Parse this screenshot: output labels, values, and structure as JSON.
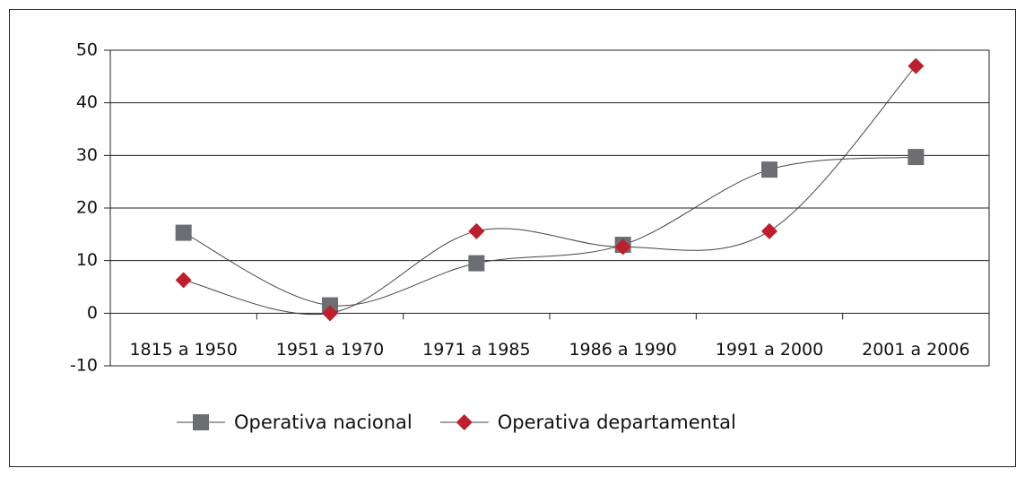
{
  "chart_data": {
    "type": "line",
    "categories": [
      "1815 a 1950",
      "1951 a 1970",
      "1971 a 1985",
      "1986 a 1990",
      "1991 a 2000",
      "2001 a 2006"
    ],
    "series": [
      {
        "name": "Operativa nacional",
        "color": "#6d6e71",
        "marker": "square",
        "values": [
          15.3,
          1.5,
          9.5,
          13,
          27.3,
          29.7
        ]
      },
      {
        "name": "Operativa departamental",
        "color": "#be1e2d",
        "marker": "diamond",
        "values": [
          6.3,
          0,
          15.6,
          12.6,
          15.6,
          47
        ]
      }
    ],
    "ylim": [
      -10,
      50
    ],
    "yticks": [
      -10,
      0,
      10,
      20,
      30,
      40,
      50
    ],
    "grid": true,
    "smooth": true,
    "legend": "bottom"
  }
}
